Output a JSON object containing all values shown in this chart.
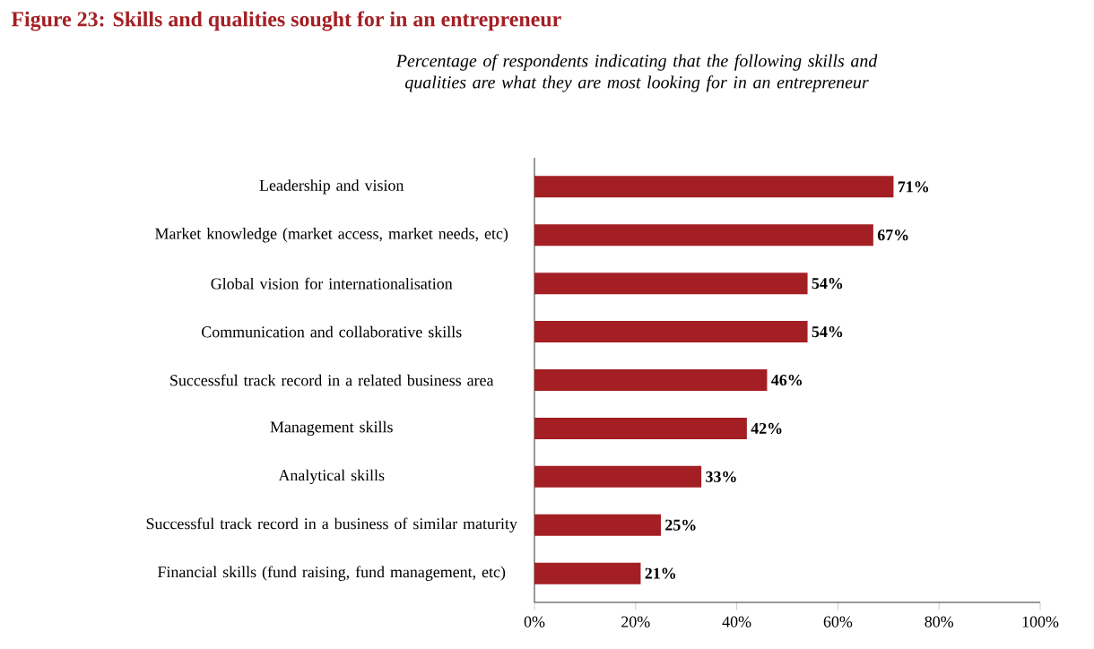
{
  "chart_data": {
    "type": "bar",
    "orientation": "horizontal",
    "title": "Figure 23: Skills and qualities sought for in an entrepreneur",
    "subtitle": "Percentage of respondents indicating that the following skills and qualities are what they are most looking for in an entrepreneur",
    "categories": [
      "Leadership and vision",
      "Market knowledge (market access, market needs, etc)",
      "Global vision for internationalisation",
      "Communication and collaborative skills",
      "Successful track record in a related business area",
      "Management skills",
      "Analytical skills",
      "Successful track record in a business of similar maturity",
      "Financial skills (fund raising, fund management, etc)"
    ],
    "values": [
      71,
      67,
      54,
      54,
      46,
      42,
      33,
      25,
      21
    ],
    "value_labels": [
      "71%",
      "67%",
      "54%",
      "54%",
      "46%",
      "42%",
      "33%",
      "25%",
      "21%"
    ],
    "color": "#a31f24",
    "xlim": [
      0,
      100
    ],
    "xticks": [
      {
        "value": 0,
        "label": "0%"
      },
      {
        "value": 20,
        "label": "20%"
      },
      {
        "value": 40,
        "label": "40%"
      },
      {
        "value": 60,
        "label": "60%"
      },
      {
        "value": 80,
        "label": "80%"
      },
      {
        "value": 100,
        "label": "100%"
      }
    ],
    "grid": false
  }
}
